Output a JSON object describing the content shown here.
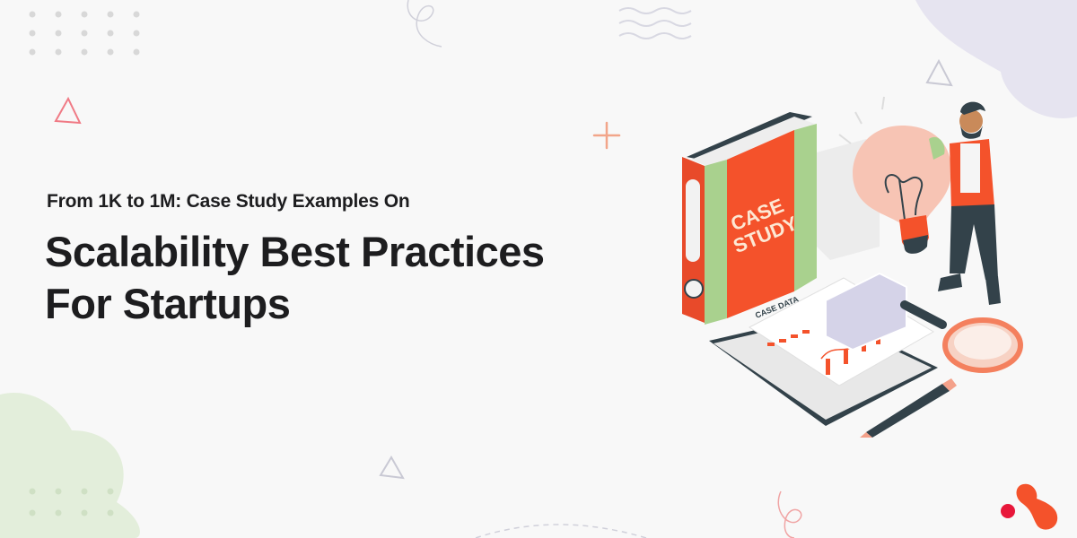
{
  "banner": {
    "subtitle": "From 1K to 1M: Case Study Examples On",
    "headline_line1": "Scalability Best Practices",
    "headline_line2": "For Startups"
  },
  "illustration": {
    "binder_label_line1": "CASE",
    "binder_label_line2": "STUDY",
    "document_title": "CASE DATA"
  },
  "colors": {
    "text": "#1d1d1f",
    "accent_orange": "#f4522b",
    "accent_green": "#a9d18e",
    "logo_red": "#e8173a",
    "background": "#f8f8f8"
  },
  "icons": [
    "dot-grid-icon",
    "triangle-icon",
    "plus-icon",
    "wave-lines-icon",
    "logo-icon"
  ]
}
